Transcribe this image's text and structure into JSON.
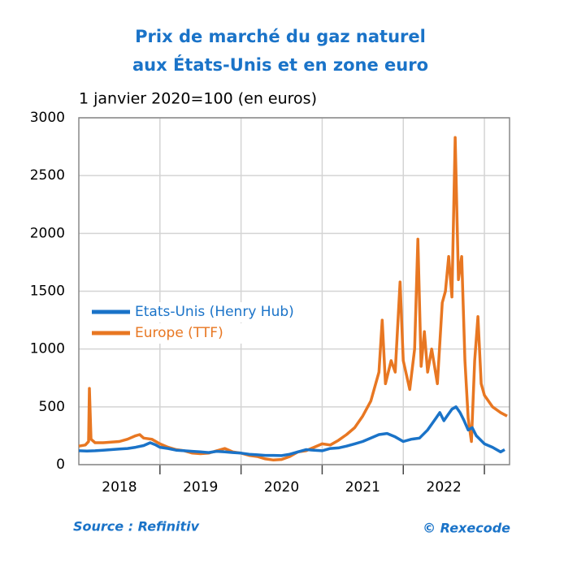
{
  "chart_data": {
    "type": "line",
    "title": "Prix de marché du gaz naturel",
    "title2": "aux États-Unis et en zone euro",
    "subtitle": "1 janvier 2020=100 (en euros)",
    "source": "Source : Refinitiv",
    "copyright": "© Rexecode",
    "xlim": [
      2018,
      2023.31
    ],
    "xticks": [
      {
        "value": 2018.5,
        "label": "2018"
      },
      {
        "value": 2019.5,
        "label": "2019"
      },
      {
        "value": 2020.5,
        "label": "2020"
      },
      {
        "value": 2021.5,
        "label": "2021"
      },
      {
        "value": 2022.5,
        "label": "2022"
      }
    ],
    "xgrid": [
      2019,
      2020,
      2021,
      2022,
      2023
    ],
    "ylim": [
      0,
      3000
    ],
    "yticks": [
      0,
      500,
      1000,
      1500,
      2000,
      2500,
      3000
    ],
    "grid": true,
    "legend": "left",
    "series": [
      {
        "name": "Etats-Unis (Henry Hub)",
        "color": "#1a73c8",
        "x": [
          2018.0,
          2018.1,
          2018.2,
          2018.3,
          2018.4,
          2018.5,
          2018.6,
          2018.7,
          2018.8,
          2018.88,
          2018.95,
          2019.0,
          2019.1,
          2019.2,
          2019.3,
          2019.4,
          2019.5,
          2019.6,
          2019.7,
          2019.8,
          2019.9,
          2020.0,
          2020.1,
          2020.2,
          2020.3,
          2020.4,
          2020.5,
          2020.6,
          2020.7,
          2020.8,
          2020.9,
          2021.0,
          2021.1,
          2021.2,
          2021.3,
          2021.4,
          2021.5,
          2021.6,
          2021.7,
          2021.8,
          2021.9,
          2022.0,
          2022.1,
          2022.2,
          2022.3,
          2022.4,
          2022.45,
          2022.5,
          2022.55,
          2022.6,
          2022.65,
          2022.7,
          2022.75,
          2022.8,
          2022.85,
          2022.9,
          2023.0,
          2023.1,
          2023.2,
          2023.25
        ],
        "values": [
          120,
          118,
          120,
          125,
          130,
          135,
          140,
          150,
          165,
          190,
          170,
          150,
          140,
          125,
          120,
          115,
          110,
          105,
          115,
          110,
          105,
          100,
          90,
          85,
          80,
          80,
          78,
          90,
          110,
          130,
          125,
          120,
          140,
          145,
          160,
          180,
          200,
          230,
          260,
          270,
          240,
          200,
          220,
          230,
          300,
          400,
          450,
          380,
          430,
          480,
          500,
          450,
          380,
          300,
          320,
          250,
          180,
          150,
          110,
          130
        ]
      },
      {
        "name": "Europe (TTF)",
        "color": "#e87722",
        "x": [
          2018.0,
          2018.08,
          2018.12,
          2018.13,
          2018.15,
          2018.2,
          2018.3,
          2018.4,
          2018.5,
          2018.6,
          2018.7,
          2018.75,
          2018.8,
          2018.9,
          2019.0,
          2019.1,
          2019.2,
          2019.3,
          2019.4,
          2019.5,
          2019.6,
          2019.7,
          2019.8,
          2019.9,
          2020.0,
          2020.1,
          2020.2,
          2020.3,
          2020.4,
          2020.5,
          2020.6,
          2020.7,
          2020.8,
          2020.9,
          2021.0,
          2021.1,
          2021.2,
          2021.3,
          2021.4,
          2021.5,
          2021.6,
          2021.7,
          2021.74,
          2021.78,
          2021.85,
          2021.9,
          2021.96,
          2022.0,
          2022.08,
          2022.14,
          2022.18,
          2022.22,
          2022.26,
          2022.3,
          2022.35,
          2022.42,
          2022.48,
          2022.52,
          2022.56,
          2022.6,
          2022.64,
          2022.68,
          2022.72,
          2022.76,
          2022.8,
          2022.84,
          2022.88,
          2022.92,
          2022.96,
          2023.0,
          2023.1,
          2023.2,
          2023.28
        ],
        "values": [
          160,
          170,
          200,
          660,
          220,
          190,
          190,
          195,
          200,
          220,
          250,
          260,
          230,
          220,
          180,
          150,
          130,
          120,
          100,
          95,
          100,
          120,
          140,
          110,
          100,
          80,
          70,
          50,
          40,
          45,
          70,
          110,
          120,
          150,
          180,
          170,
          210,
          260,
          320,
          420,
          550,
          800,
          1250,
          700,
          900,
          800,
          1580,
          900,
          650,
          1000,
          1950,
          850,
          1150,
          800,
          1000,
          700,
          1400,
          1500,
          1800,
          1450,
          2830,
          1600,
          1800,
          900,
          400,
          200,
          900,
          1280,
          700,
          600,
          500,
          450,
          420
        ]
      }
    ]
  }
}
